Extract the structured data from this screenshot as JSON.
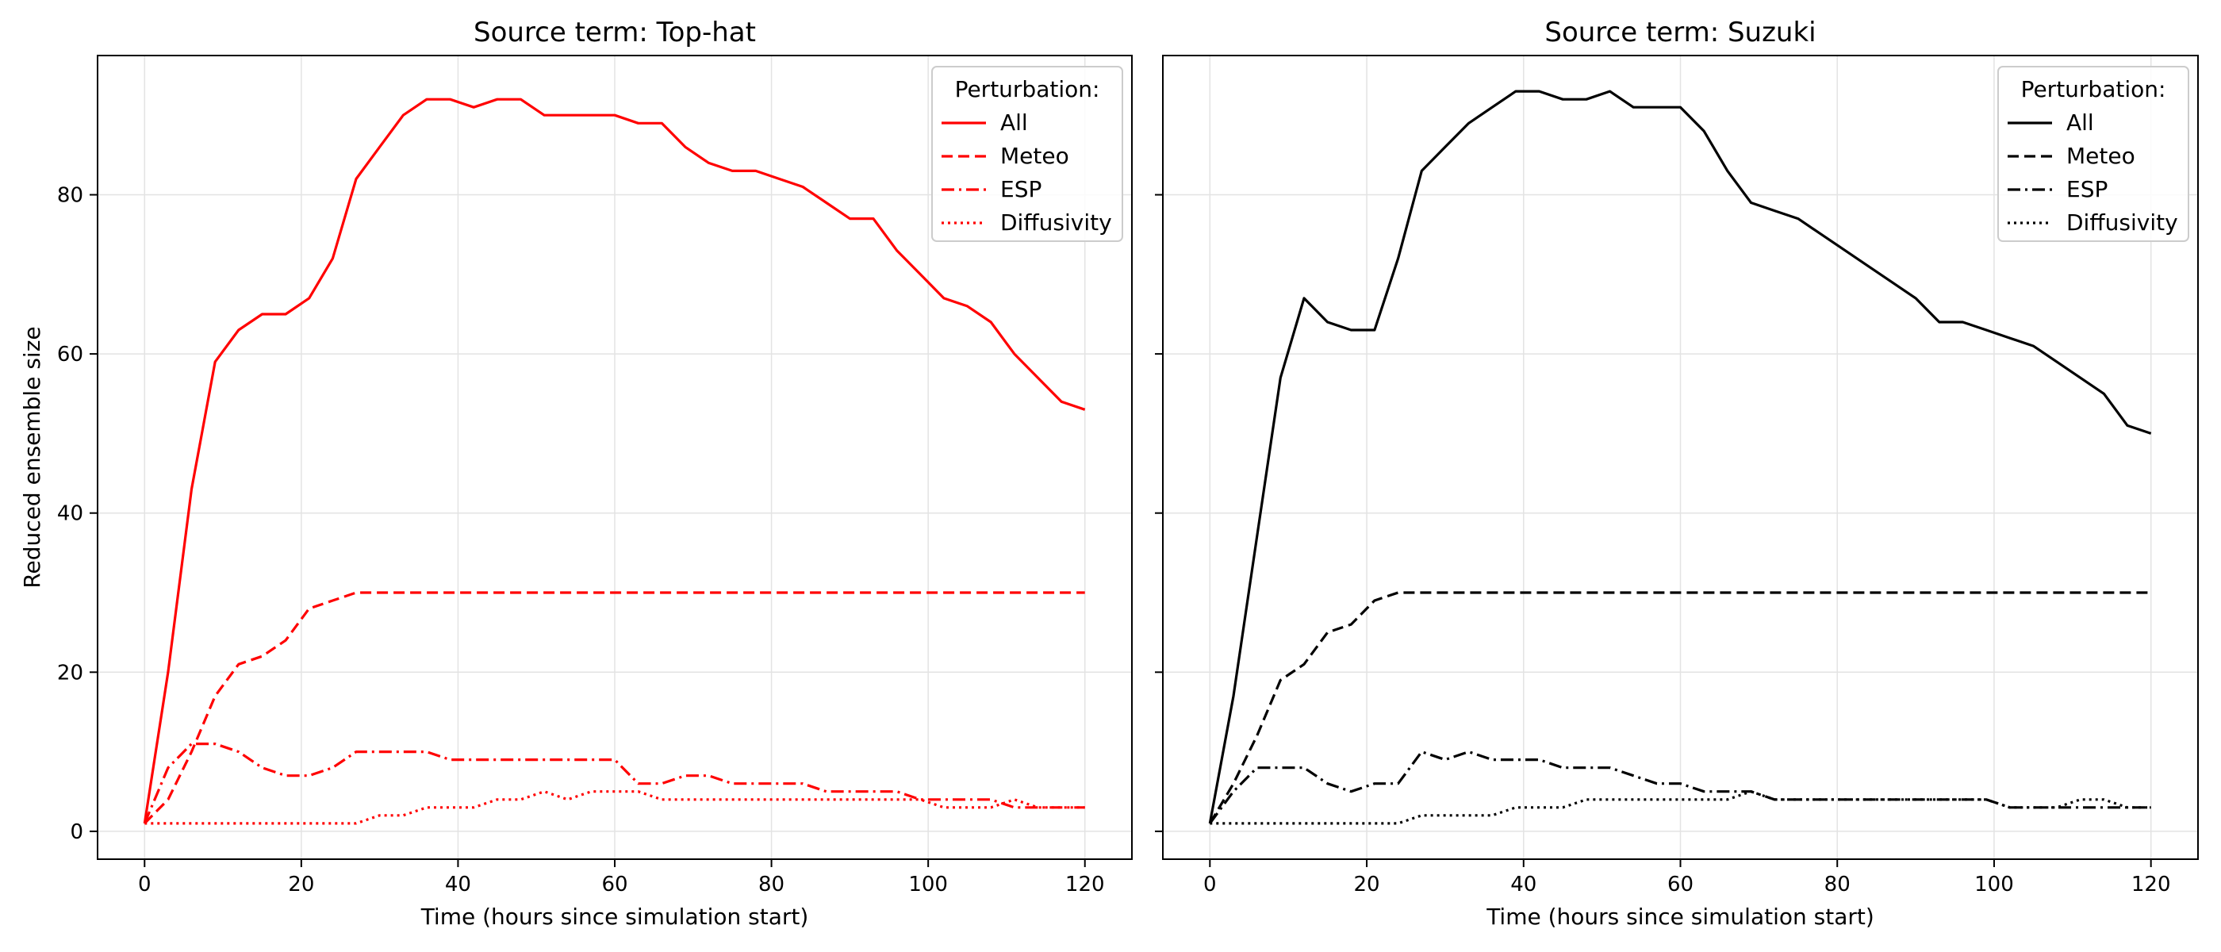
{
  "chart_data": [
    {
      "type": "line",
      "title": "Source term: Top-hat",
      "xlabel": "Time (hours since simulation start)",
      "ylabel": "Reduced ensemble size",
      "xlim": [
        -6,
        126
      ],
      "ylim": [
        -3.5,
        97.5
      ],
      "xticks": [
        0,
        20,
        40,
        60,
        80,
        100,
        120
      ],
      "yticks": [
        0,
        20,
        40,
        60,
        80
      ],
      "grid": true,
      "legend": {
        "title": "Perturbation:",
        "placement": "top-right"
      },
      "color": "#ff0000",
      "series": [
        {
          "name": "All",
          "style": "solid",
          "x": [
            0,
            3,
            6,
            9,
            12,
            15,
            18,
            21,
            24,
            27,
            30,
            33,
            36,
            39,
            42,
            45,
            48,
            51,
            54,
            57,
            60,
            63,
            66,
            69,
            72,
            75,
            78,
            81,
            84,
            87,
            90,
            93,
            96,
            99,
            102,
            105,
            108,
            111,
            114,
            117,
            120
          ],
          "y": [
            1,
            20,
            43,
            59,
            63,
            65,
            65,
            67,
            72,
            82,
            86,
            90,
            92,
            92,
            91,
            92,
            92,
            90,
            90,
            90,
            90,
            89,
            89,
            86,
            84,
            83,
            83,
            82,
            81,
            79,
            77,
            77,
            73,
            70,
            67,
            66,
            64,
            60,
            57,
            54,
            53
          ]
        },
        {
          "name": "Meteo",
          "style": "dashed",
          "x": [
            0,
            3,
            6,
            9,
            12,
            15,
            18,
            21,
            24,
            27,
            30,
            120
          ],
          "y": [
            1,
            4,
            10,
            17,
            21,
            22,
            24,
            28,
            29,
            30,
            30,
            30
          ]
        },
        {
          "name": "ESP",
          "style": "dashdot",
          "x": [
            0,
            3,
            6,
            9,
            12,
            15,
            18,
            21,
            24,
            27,
            30,
            33,
            36,
            39,
            42,
            45,
            48,
            51,
            54,
            57,
            60,
            63,
            66,
            69,
            72,
            75,
            78,
            81,
            84,
            87,
            90,
            93,
            96,
            99,
            102,
            105,
            108,
            111,
            114,
            117,
            120
          ],
          "y": [
            1,
            8,
            11,
            11,
            10,
            8,
            7,
            7,
            8,
            10,
            10,
            10,
            10,
            9,
            9,
            9,
            9,
            9,
            9,
            9,
            9,
            6,
            6,
            7,
            7,
            6,
            6,
            6,
            6,
            5,
            5,
            5,
            5,
            4,
            4,
            4,
            4,
            3,
            3,
            3,
            3
          ]
        },
        {
          "name": "Diffusivity",
          "style": "dotted",
          "x": [
            0,
            3,
            6,
            9,
            12,
            15,
            18,
            21,
            24,
            27,
            30,
            33,
            36,
            39,
            42,
            45,
            48,
            51,
            54,
            57,
            60,
            63,
            66,
            69,
            72,
            75,
            78,
            81,
            84,
            87,
            90,
            93,
            96,
            99,
            102,
            105,
            108,
            111,
            114,
            117,
            120
          ],
          "y": [
            1,
            1,
            1,
            1,
            1,
            1,
            1,
            1,
            1,
            1,
            2,
            2,
            3,
            3,
            3,
            4,
            4,
            5,
            4,
            5,
            5,
            5,
            4,
            4,
            4,
            4,
            4,
            4,
            4,
            4,
            4,
            4,
            4,
            4,
            3,
            3,
            3,
            4,
            3,
            3,
            3
          ]
        }
      ]
    },
    {
      "type": "line",
      "title": "Source term: Suzuki",
      "xlabel": "Time (hours since simulation start)",
      "ylabel": "",
      "xlim": [
        -6,
        126
      ],
      "ylim": [
        -3.5,
        97.5
      ],
      "xticks": [
        0,
        20,
        40,
        60,
        80,
        100,
        120
      ],
      "yticks": [
        0,
        20,
        40,
        60,
        80
      ],
      "grid": true,
      "legend": {
        "title": "Perturbation:",
        "placement": "top-right"
      },
      "color": "#000000",
      "series": [
        {
          "name": "All",
          "style": "solid",
          "x": [
            0,
            3,
            6,
            9,
            12,
            15,
            18,
            21,
            24,
            27,
            30,
            33,
            36,
            39,
            42,
            45,
            48,
            51,
            54,
            57,
            60,
            63,
            66,
            69,
            72,
            75,
            78,
            81,
            84,
            87,
            90,
            93,
            96,
            99,
            102,
            105,
            108,
            111,
            114,
            117,
            120
          ],
          "y": [
            1,
            17,
            37,
            57,
            67,
            64,
            63,
            63,
            72,
            83,
            86,
            89,
            91,
            93,
            93,
            92,
            92,
            93,
            91,
            91,
            91,
            88,
            83,
            79,
            78,
            77,
            75,
            73,
            71,
            69,
            67,
            64,
            64,
            63,
            62,
            61,
            59,
            57,
            55,
            51,
            50
          ]
        },
        {
          "name": "Meteo",
          "style": "dashed",
          "x": [
            0,
            3,
            6,
            9,
            12,
            15,
            18,
            21,
            24,
            27,
            30,
            120
          ],
          "y": [
            1,
            6,
            12,
            19,
            21,
            25,
            26,
            29,
            30,
            30,
            30,
            30
          ]
        },
        {
          "name": "ESP",
          "style": "dashdot",
          "x": [
            0,
            3,
            6,
            9,
            12,
            15,
            18,
            21,
            24,
            27,
            30,
            33,
            36,
            39,
            42,
            45,
            48,
            51,
            54,
            57,
            60,
            63,
            66,
            69,
            72,
            75,
            78,
            81,
            84,
            87,
            90,
            93,
            96,
            99,
            102,
            105,
            108,
            111,
            114,
            117,
            120
          ],
          "y": [
            1,
            5,
            8,
            8,
            8,
            6,
            5,
            6,
            6,
            10,
            9,
            10,
            9,
            9,
            9,
            8,
            8,
            8,
            7,
            6,
            6,
            5,
            5,
            5,
            4,
            4,
            4,
            4,
            4,
            4,
            4,
            4,
            4,
            4,
            3,
            3,
            3,
            3,
            3,
            3,
            3
          ]
        },
        {
          "name": "Diffusivity",
          "style": "dotted",
          "x": [
            0,
            3,
            6,
            9,
            12,
            15,
            18,
            21,
            24,
            27,
            30,
            33,
            36,
            39,
            42,
            45,
            48,
            51,
            54,
            57,
            60,
            63,
            66,
            69,
            72,
            75,
            78,
            81,
            84,
            87,
            90,
            93,
            96,
            99,
            102,
            105,
            108,
            111,
            114,
            117,
            120
          ],
          "y": [
            1,
            1,
            1,
            1,
            1,
            1,
            1,
            1,
            1,
            2,
            2,
            2,
            2,
            3,
            3,
            3,
            4,
            4,
            4,
            4,
            4,
            4,
            4,
            5,
            4,
            4,
            4,
            4,
            4,
            4,
            4,
            4,
            4,
            4,
            3,
            3,
            3,
            4,
            4,
            3,
            3
          ]
        }
      ]
    }
  ]
}
